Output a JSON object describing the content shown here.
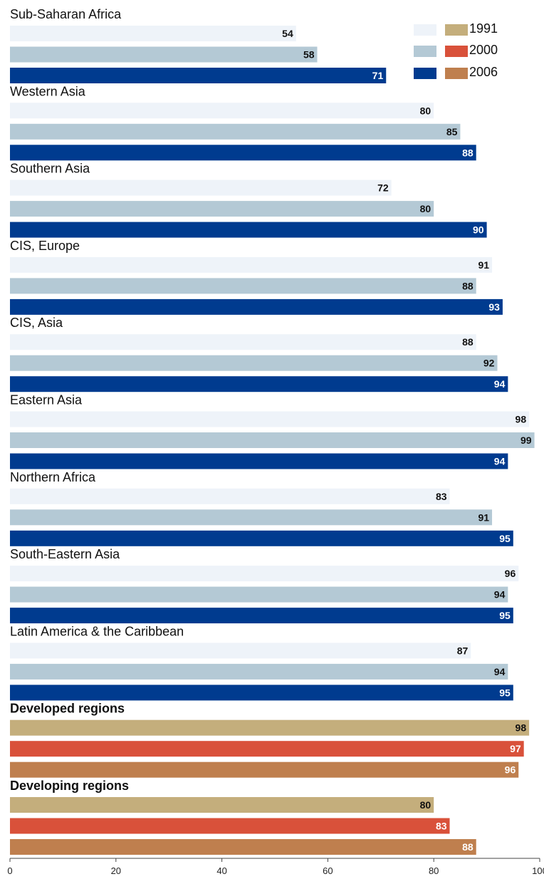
{
  "chart_data": {
    "type": "bar",
    "orientation": "horizontal",
    "xlim": [
      0,
      100
    ],
    "x_ticks": [
      "0",
      "20",
      "40",
      "60",
      "80",
      "100"
    ],
    "legend": {
      "position": "top-right",
      "years": [
        "1991",
        "2000",
        "2006"
      ],
      "light_swatches": [
        "#eef3f9",
        "#b4c9d5",
        "#003b8f"
      ],
      "dark_swatches": [
        "#c4ae7c",
        "#d9513a",
        "#bf7f4e"
      ]
    },
    "groups": [
      {
        "label": "Sub-Saharan Africa",
        "bold": false,
        "values": [
          54,
          58,
          71
        ],
        "colors": [
          "#eef3f9",
          "#b4c9d5",
          "#003b8f"
        ]
      },
      {
        "label": "Western Asia",
        "bold": false,
        "values": [
          80,
          85,
          88
        ],
        "colors": [
          "#eef3f9",
          "#b4c9d5",
          "#003b8f"
        ]
      },
      {
        "label": "Southern Asia",
        "bold": false,
        "values": [
          72,
          80,
          90
        ],
        "colors": [
          "#eef3f9",
          "#b4c9d5",
          "#003b8f"
        ]
      },
      {
        "label": "CIS, Europe",
        "bold": false,
        "values": [
          91,
          88,
          93
        ],
        "colors": [
          "#eef3f9",
          "#b4c9d5",
          "#003b8f"
        ]
      },
      {
        "label": "CIS, Asia",
        "bold": false,
        "values": [
          88,
          92,
          94
        ],
        "colors": [
          "#eef3f9",
          "#b4c9d5",
          "#003b8f"
        ]
      },
      {
        "label": "Eastern Asia",
        "bold": false,
        "values": [
          98,
          99,
          94
        ],
        "colors": [
          "#eef3f9",
          "#b4c9d5",
          "#003b8f"
        ]
      },
      {
        "label": "Northern Africa",
        "bold": false,
        "values": [
          83,
          91,
          95
        ],
        "colors": [
          "#eef3f9",
          "#b4c9d5",
          "#003b8f"
        ]
      },
      {
        "label": "South-Eastern Asia",
        "bold": false,
        "values": [
          96,
          94,
          95
        ],
        "colors": [
          "#eef3f9",
          "#b4c9d5",
          "#003b8f"
        ]
      },
      {
        "label": "Latin America & the Caribbean",
        "bold": false,
        "values": [
          87,
          94,
          95
        ],
        "colors": [
          "#eef3f9",
          "#b4c9d5",
          "#003b8f"
        ]
      },
      {
        "label": "Developed regions",
        "bold": true,
        "values": [
          98,
          97,
          96
        ],
        "colors": [
          "#c4ae7c",
          "#d9513a",
          "#bf7f4e"
        ]
      },
      {
        "label": "Developing regions",
        "bold": true,
        "values": [
          80,
          83,
          88
        ],
        "colors": [
          "#c4ae7c",
          "#d9513a",
          "#bf7f4e"
        ]
      }
    ]
  }
}
